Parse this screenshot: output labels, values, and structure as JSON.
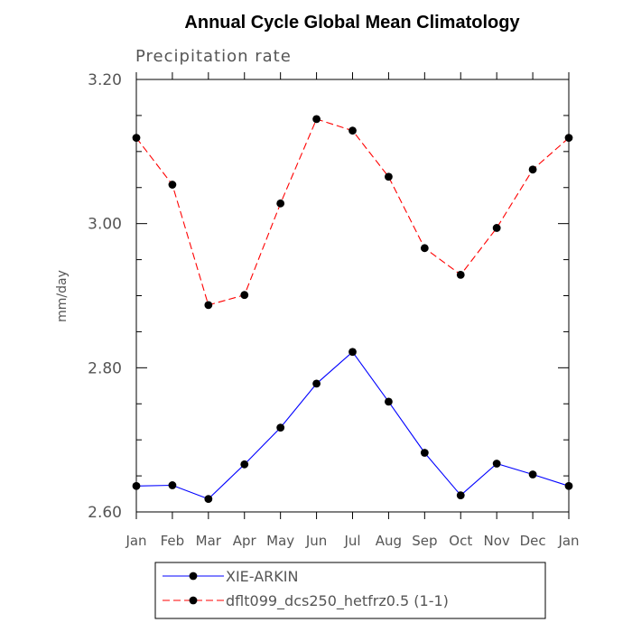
{
  "chart_data": {
    "type": "line",
    "title": "Annual Cycle Global Mean Climatology",
    "subtitle": "Precipitation rate",
    "xlabel": "",
    "ylabel": "mm/day",
    "ylim": [
      2.6,
      3.2
    ],
    "yticks": [
      "2.60",
      "2.80",
      "3.00",
      "3.20"
    ],
    "categories": [
      "Jan",
      "Feb",
      "Mar",
      "Apr",
      "May",
      "Jun",
      "Jul",
      "Aug",
      "Sep",
      "Oct",
      "Nov",
      "Dec",
      "Jan"
    ],
    "series": [
      {
        "name": "XIE-ARKIN",
        "color": "#0000ff",
        "dash": "solid",
        "values": [
          2.636,
          2.637,
          2.618,
          2.666,
          2.717,
          2.778,
          2.822,
          2.753,
          2.682,
          2.623,
          2.667,
          2.652,
          2.636
        ]
      },
      {
        "name": "dflt099_dcs250_hetfrz0.5 (1-1)",
        "color": "#ff0000",
        "dash": "dashed",
        "values": [
          3.119,
          3.054,
          2.887,
          2.901,
          3.028,
          3.145,
          3.129,
          3.065,
          2.966,
          2.929,
          2.994,
          3.075,
          3.119
        ]
      }
    ],
    "legend_position": "bottom"
  }
}
